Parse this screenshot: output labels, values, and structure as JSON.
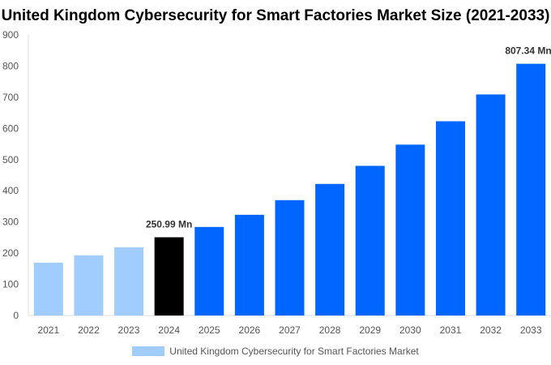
{
  "chart_data": {
    "type": "bar",
    "title": "United Kingdom Cybersecurity for Smart Factories Market Size (2021-2033)",
    "categories": [
      "2021",
      "2022",
      "2023",
      "2024",
      "2025",
      "2026",
      "2027",
      "2028",
      "2029",
      "2030",
      "2031",
      "2032",
      "2033"
    ],
    "series": [
      {
        "name": "United Kingdom Cybersecurity for Smart Factories Market",
        "values": [
          169.5,
          193,
          219,
          250.99,
          284,
          323,
          370,
          422,
          480,
          548,
          623,
          709,
          807.34
        ]
      }
    ],
    "data_labels": {
      "2024": "250.99 Mn",
      "2033": "807.34 Mn"
    },
    "ylim": [
      0,
      900
    ],
    "yticks": [
      0,
      100,
      200,
      300,
      400,
      500,
      600,
      700,
      800,
      900
    ],
    "grid": false,
    "legend": "bottom",
    "colors": {
      "historical": "#a0cdfd",
      "base_year": "#000000",
      "forecast": "#0066ff"
    },
    "color_by_category": [
      "historical",
      "historical",
      "historical",
      "base_year",
      "forecast",
      "forecast",
      "forecast",
      "forecast",
      "forecast",
      "forecast",
      "forecast",
      "forecast",
      "forecast"
    ]
  }
}
